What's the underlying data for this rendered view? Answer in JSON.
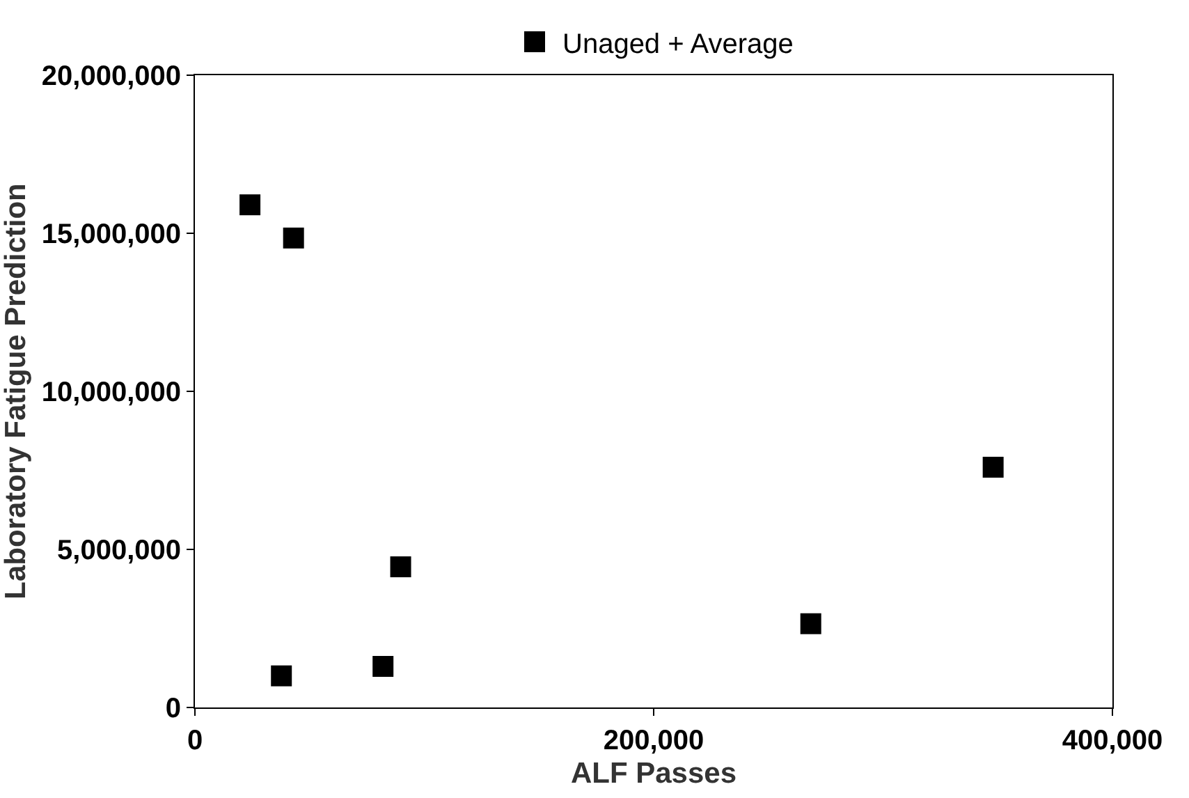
{
  "chart_data": {
    "type": "scatter",
    "xlabel": "ALF Passes",
    "ylabel": "Laboratory Fatigue Prediction",
    "x": [
      24000,
      43000,
      37700,
      82000,
      89700,
      268500,
      348000
    ],
    "series": [
      {
        "name": "Unaged + Average",
        "color": "#000000",
        "values": [
          15900000,
          14850000,
          1000000,
          1300000,
          4450000,
          2650000,
          7600000
        ]
      }
    ],
    "xlim": [
      0,
      400000
    ],
    "xticks": [
      {
        "value": 0,
        "label": "0"
      },
      {
        "value": 200000,
        "label": "200,000"
      },
      {
        "value": 400000,
        "label": "400,000"
      }
    ],
    "ylim": [
      0,
      20000000
    ],
    "yticks": [
      {
        "value": 0,
        "label": "0"
      },
      {
        "value": 5000000,
        "label": "5,000,000"
      },
      {
        "value": 10000000,
        "label": "10,000,000"
      },
      {
        "value": 15000000,
        "label": "15,000,000"
      },
      {
        "value": 20000000,
        "label": "20,000,000"
      }
    ],
    "marker": "square",
    "legend": "top"
  }
}
